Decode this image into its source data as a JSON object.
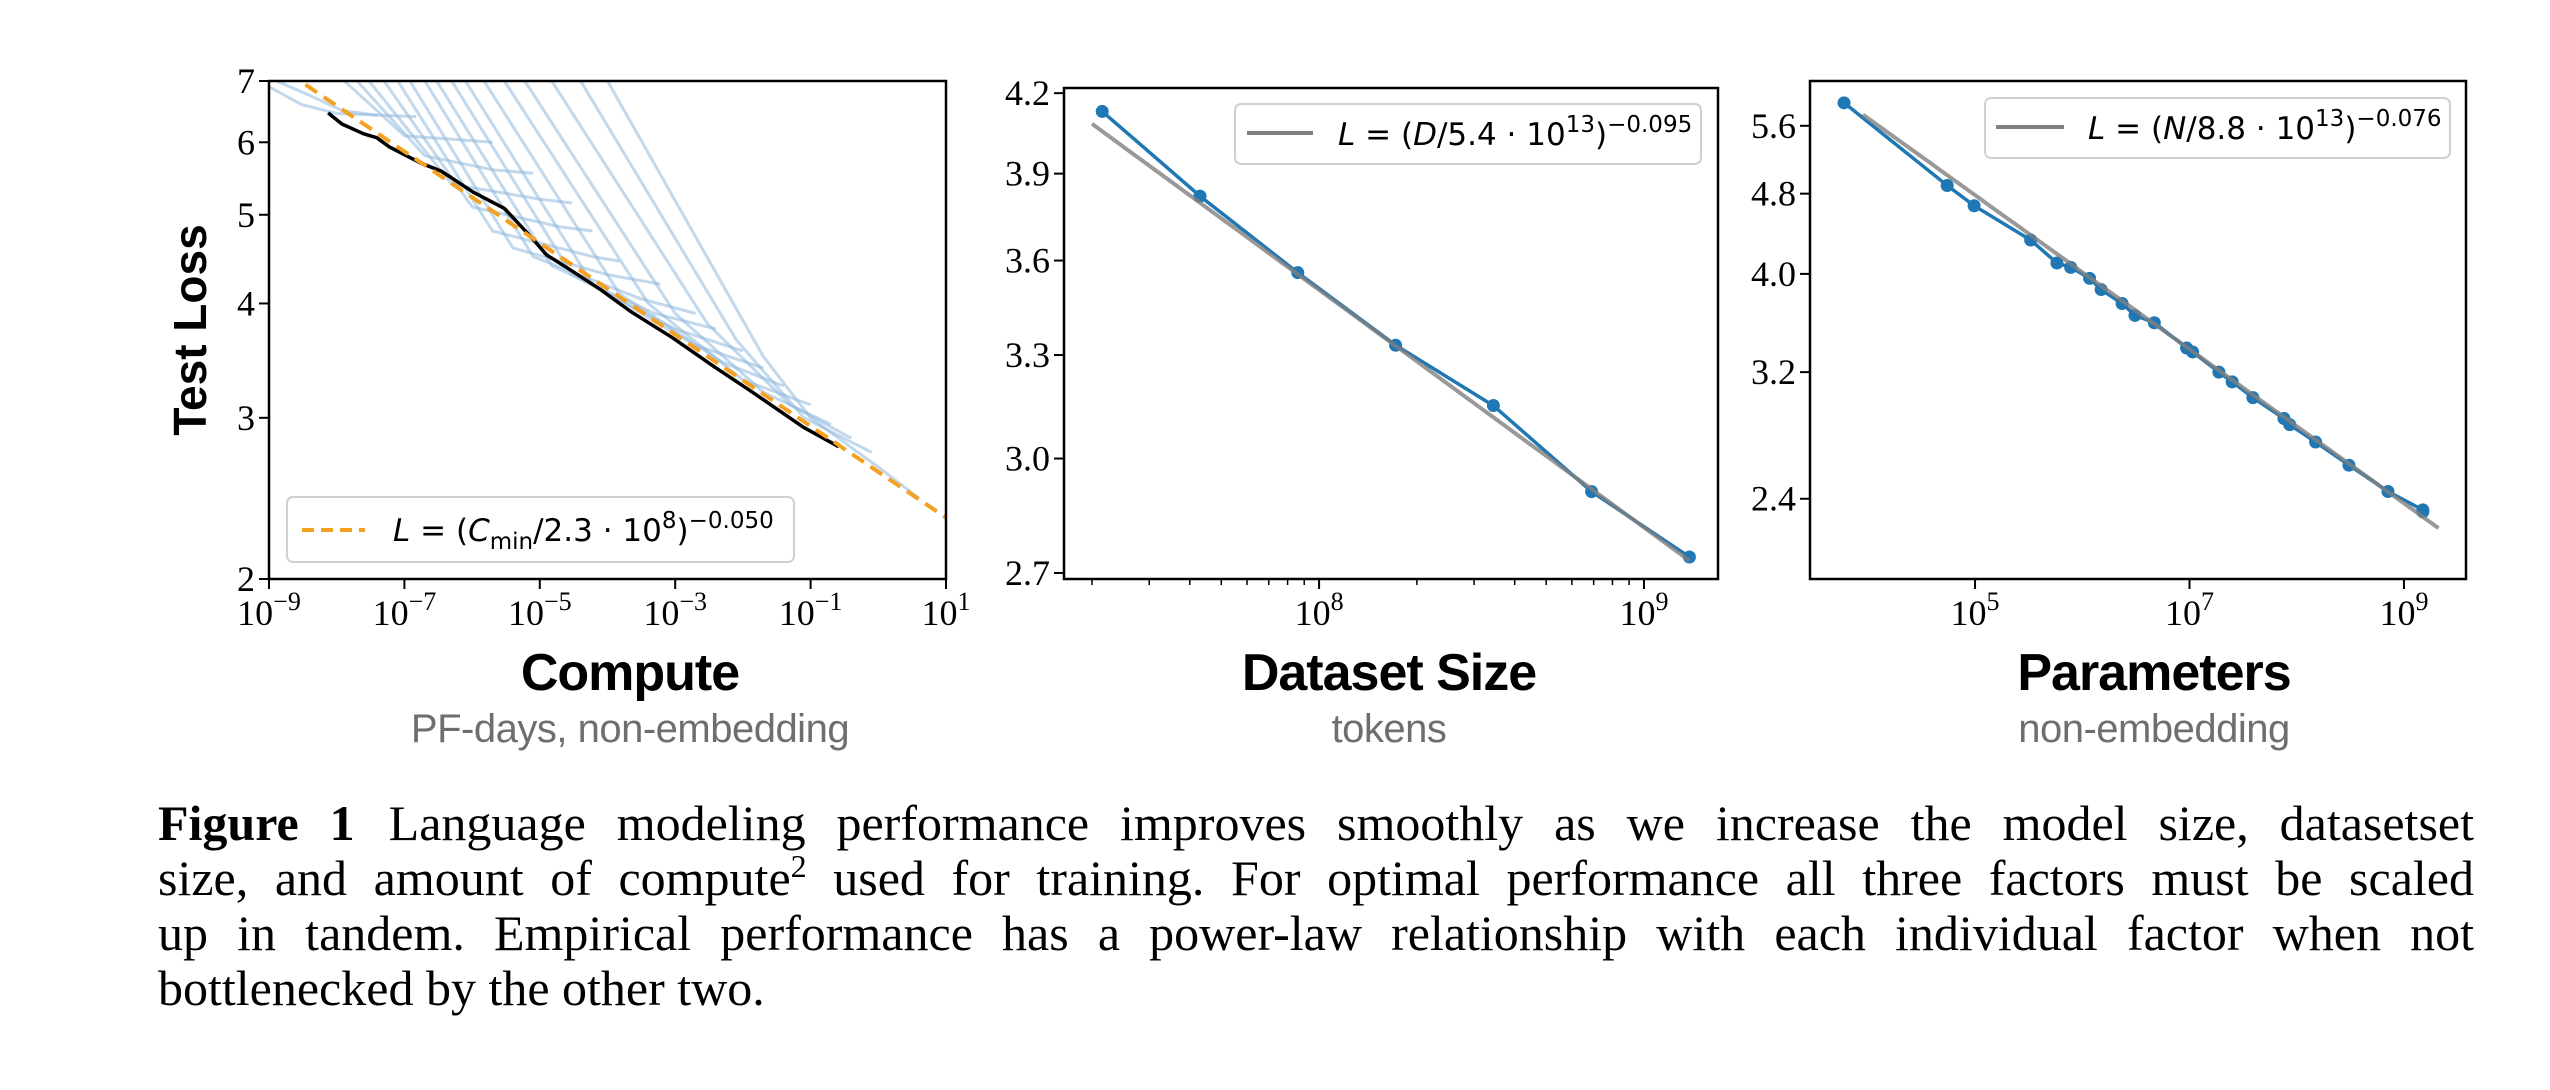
{
  "y_axis_label": "Test Loss",
  "panels": [
    {
      "title": "Compute",
      "subtitle": "PF-days, non-embedding"
    },
    {
      "title": "Dataset Size",
      "subtitle": "tokens"
    },
    {
      "title": "Parameters",
      "subtitle": "non-embedding"
    }
  ],
  "caption": {
    "label": "Figure 1",
    "line1": "Language modeling performance improves smoothly as we increase the model size, datasetset",
    "line2_before": "size, and amount of compute",
    "line2_sup": "2",
    "line2_after": " used for training.  For optimal performance all three factors must be scaled",
    "line3": "up in tandem.  Empirical performance has a power-law relationship with each individual factor when not",
    "line4": "bottlenecked by the other two."
  },
  "chart_data": [
    {
      "type": "line",
      "xlabel": "Compute",
      "ylabel": "Test Loss",
      "xscale": "log",
      "yscale": "log",
      "xlim": [
        1e-09,
        10
      ],
      "ylim": [
        2,
        7
      ],
      "xticks": [
        1e-09,
        1e-07,
        1e-05,
        0.001,
        0.1,
        10
      ],
      "xtick_labels": [
        "10^-9",
        "10^-7",
        "10^-5",
        "10^-3",
        "10^-1",
        "10^1"
      ],
      "yticks": [
        2,
        3,
        4,
        5,
        6,
        7
      ],
      "ytick_labels": [
        "2",
        "3",
        "4",
        "5",
        "6",
        "7"
      ],
      "grid": false,
      "legend_position": "lower-left",
      "fit": {
        "coef": 230000000.0,
        "exponent": -0.05,
        "x_range": [
          1e-09,
          10
        ],
        "color": "#f5a020",
        "style": "dashed",
        "legend": [
          {
            "t": "L",
            "i": true
          },
          {
            "t": " = ("
          },
          {
            "t": "C",
            "i": true
          },
          {
            "t": "min",
            "sub": true
          },
          {
            "t": "/2.3 · 10"
          },
          {
            "t": "8",
            "sup": true
          },
          {
            "t": ")"
          },
          {
            "t": "−0.050",
            "sup": true
          }
        ]
      },
      "frontier": {
        "color": "#000000",
        "points": [
          [
            7.5e-09,
            6.46
          ],
          [
            8.5e-09,
            6.41
          ],
          [
            1.2e-08,
            6.28
          ],
          [
            2.5e-08,
            6.13
          ],
          [
            3.9e-08,
            6.07
          ],
          [
            6e-08,
            5.93
          ],
          [
            1.7e-07,
            5.7
          ],
          [
            3.5e-07,
            5.58
          ],
          [
            1.05e-06,
            5.29
          ],
          [
            3e-06,
            5.08
          ],
          [
            7.4e-06,
            4.73
          ],
          [
            1.26e-05,
            4.52
          ],
          [
            2.6e-05,
            4.37
          ],
          [
            7.6e-05,
            4.15
          ],
          [
            0.00022,
            3.92
          ],
          [
            0.00091,
            3.67
          ],
          [
            0.0038,
            3.41
          ],
          [
            0.013,
            3.21
          ],
          [
            0.078,
            2.93
          ],
          [
            0.26,
            2.79
          ]
        ]
      },
      "learning_curves_color": "#8fb8dc",
      "learning_curves": [
        [
          [
            1e-09,
            6.9
          ],
          [
            3e-09,
            6.6
          ],
          [
            1e-08,
            6.45
          ],
          [
            1.5e-07,
            6.4
          ]
        ],
        [
          [
            1.3e-09,
            7
          ],
          [
            4e-09,
            6.75
          ],
          [
            1.2e-08,
            6.5
          ],
          [
            4e-08,
            6.42
          ]
        ],
        [
          [
            1.3e-08,
            7
          ],
          [
            1e-07,
            6.1
          ],
          [
            2e-06,
            6.0
          ]
        ],
        [
          [
            2e-08,
            7
          ],
          [
            2e-07,
            5.8
          ],
          [
            2e-06,
            5.6
          ],
          [
            8e-06,
            5.55
          ]
        ],
        [
          [
            3e-08,
            7
          ],
          [
            5e-07,
            5.4
          ],
          [
            1e-05,
            5.2
          ],
          [
            3e-05,
            5.15
          ]
        ],
        [
          [
            5e-08,
            7
          ],
          [
            1e-06,
            5.1
          ],
          [
            2e-05,
            4.85
          ],
          [
            6e-05,
            4.8
          ]
        ],
        [
          [
            8e-08,
            7
          ],
          [
            2e-06,
            4.8
          ],
          [
            6e-05,
            4.5
          ],
          [
            0.00015,
            4.45
          ]
        ],
        [
          [
            1.2e-07,
            7
          ],
          [
            4e-06,
            4.6
          ],
          [
            0.0001,
            4.3
          ],
          [
            0.0006,
            4.2
          ]
        ],
        [
          [
            2e-07,
            7
          ],
          [
            8e-06,
            4.5
          ],
          [
            0.0003,
            4.05
          ],
          [
            0.002,
            3.9
          ]
        ],
        [
          [
            3e-07,
            7
          ],
          [
            1.5e-05,
            4.4
          ],
          [
            0.0005,
            3.9
          ],
          [
            0.004,
            3.75
          ]
        ],
        [
          [
            5e-07,
            7
          ],
          [
            3e-05,
            4.3
          ],
          [
            0.001,
            3.75
          ],
          [
            0.01,
            3.55
          ]
        ],
        [
          [
            8e-07,
            7
          ],
          [
            6e-05,
            4.2
          ],
          [
            0.002,
            3.6
          ],
          [
            0.02,
            3.4
          ]
        ],
        [
          [
            1.5e-06,
            7
          ],
          [
            0.00015,
            4.1
          ],
          [
            0.005,
            3.45
          ],
          [
            0.04,
            3.25
          ]
        ],
        [
          [
            3e-06,
            7
          ],
          [
            0.0004,
            4.0
          ],
          [
            0.01,
            3.3
          ],
          [
            0.1,
            3.1
          ]
        ],
        [
          [
            6e-06,
            7
          ],
          [
            0.001,
            3.9
          ],
          [
            0.02,
            3.2
          ],
          [
            0.2,
            2.95
          ]
        ],
        [
          [
            1.5e-05,
            7
          ],
          [
            0.003,
            3.8
          ],
          [
            0.05,
            3.1
          ],
          [
            0.4,
            2.85
          ]
        ],
        [
          [
            4e-05,
            7
          ],
          [
            0.008,
            3.65
          ],
          [
            0.08,
            3.0
          ],
          [
            0.8,
            2.75
          ]
        ],
        [
          [
            0.0001,
            7
          ],
          [
            0.02,
            3.5
          ],
          [
            0.1,
            3.0
          ],
          [
            1,
            2.65
          ],
          [
            4,
            2.45
          ]
        ]
      ]
    },
    {
      "type": "line",
      "xlabel": "Dataset Size",
      "xscale": "log",
      "yscale": "log",
      "xlim": [
        16400000.0,
        1690000000.0
      ],
      "ylim": [
        2.685,
        4.22
      ],
      "xticks": [
        100000000.0,
        1000000000.0
      ],
      "xtick_labels": [
        "10^8",
        "10^9"
      ],
      "yticks": [
        2.7,
        3.0,
        3.3,
        3.6,
        3.9,
        4.2
      ],
      "ytick_labels": [
        "2.7",
        "3.0",
        "3.3",
        "3.6",
        "3.9",
        "4.2"
      ],
      "grid": false,
      "legend_position": "upper-right",
      "series_color": "#1f77b4",
      "x": [
        21500000.0,
        43000000.0,
        86000000.0,
        172000000.0,
        344000000.0,
        690000000.0,
        1380000000.0
      ],
      "y": [
        4.13,
        3.82,
        3.56,
        3.33,
        3.15,
        2.91,
        2.74
      ],
      "fit": {
        "coef": 54000000000000.0,
        "exponent": -0.095,
        "x_range": [
          20000000.0,
          1380000000.0
        ],
        "color": "#7f7f7f",
        "style": "solid",
        "legend": [
          {
            "t": "L",
            "i": true
          },
          {
            "t": " = ("
          },
          {
            "t": "D",
            "i": true
          },
          {
            "t": "/5.4 · 10"
          },
          {
            "t": "13",
            "sup": true
          },
          {
            "t": ")"
          },
          {
            "t": "−0.095",
            "sup": true
          }
        ]
      }
    },
    {
      "type": "line",
      "xlabel": "Parameters",
      "xscale": "log",
      "yscale": "log",
      "xlim": [
        2890.0,
        3790000000.0
      ],
      "ylim": [
        2.0,
        6.2
      ],
      "xticks": [
        100000.0,
        10000000.0,
        1000000000.0
      ],
      "xtick_labels": [
        "10^5",
        "10^7",
        "10^9"
      ],
      "yticks": [
        2.4,
        3.2,
        4.0,
        4.8,
        5.6
      ],
      "ytick_labels": [
        "2.4",
        "3.2",
        "4.0",
        "4.8",
        "5.6"
      ],
      "grid": false,
      "legend_position": "upper-right",
      "series_color": "#1f77b4",
      "x": [
        6000.0,
        55000.0,
        98000.0,
        330000.0,
        580000.0,
        780000.0,
        1170000.0,
        1500000.0,
        2350000.0,
        3100000.0,
        4700000.0,
        9400000.0,
        10700000.0,
        18800000.0,
        25000000.0,
        39000000.0,
        76000000.0,
        86000000.0,
        150000000.0,
        307000000.0,
        710000000.0,
        1500000000.0,
        1500000000.0
      ],
      "y": [
        5.9,
        4.89,
        4.67,
        4.32,
        4.1,
        4.06,
        3.96,
        3.86,
        3.74,
        3.64,
        3.58,
        3.38,
        3.35,
        3.2,
        3.13,
        3.02,
        2.88,
        2.84,
        2.73,
        2.59,
        2.44,
        2.34,
        2.33
      ],
      "fit": {
        "coef": 88000000000000.0,
        "exponent": -0.076,
        "x_range": [
          9000.0,
          2100000000.0
        ],
        "color": "#7f7f7f",
        "style": "solid",
        "legend": [
          {
            "t": "L",
            "i": true
          },
          {
            "t": " = ("
          },
          {
            "t": "N",
            "i": true
          },
          {
            "t": "/8.8 · 10"
          },
          {
            "t": "13",
            "sup": true
          },
          {
            "t": ")"
          },
          {
            "t": "−0.076",
            "sup": true
          }
        ]
      }
    }
  ]
}
